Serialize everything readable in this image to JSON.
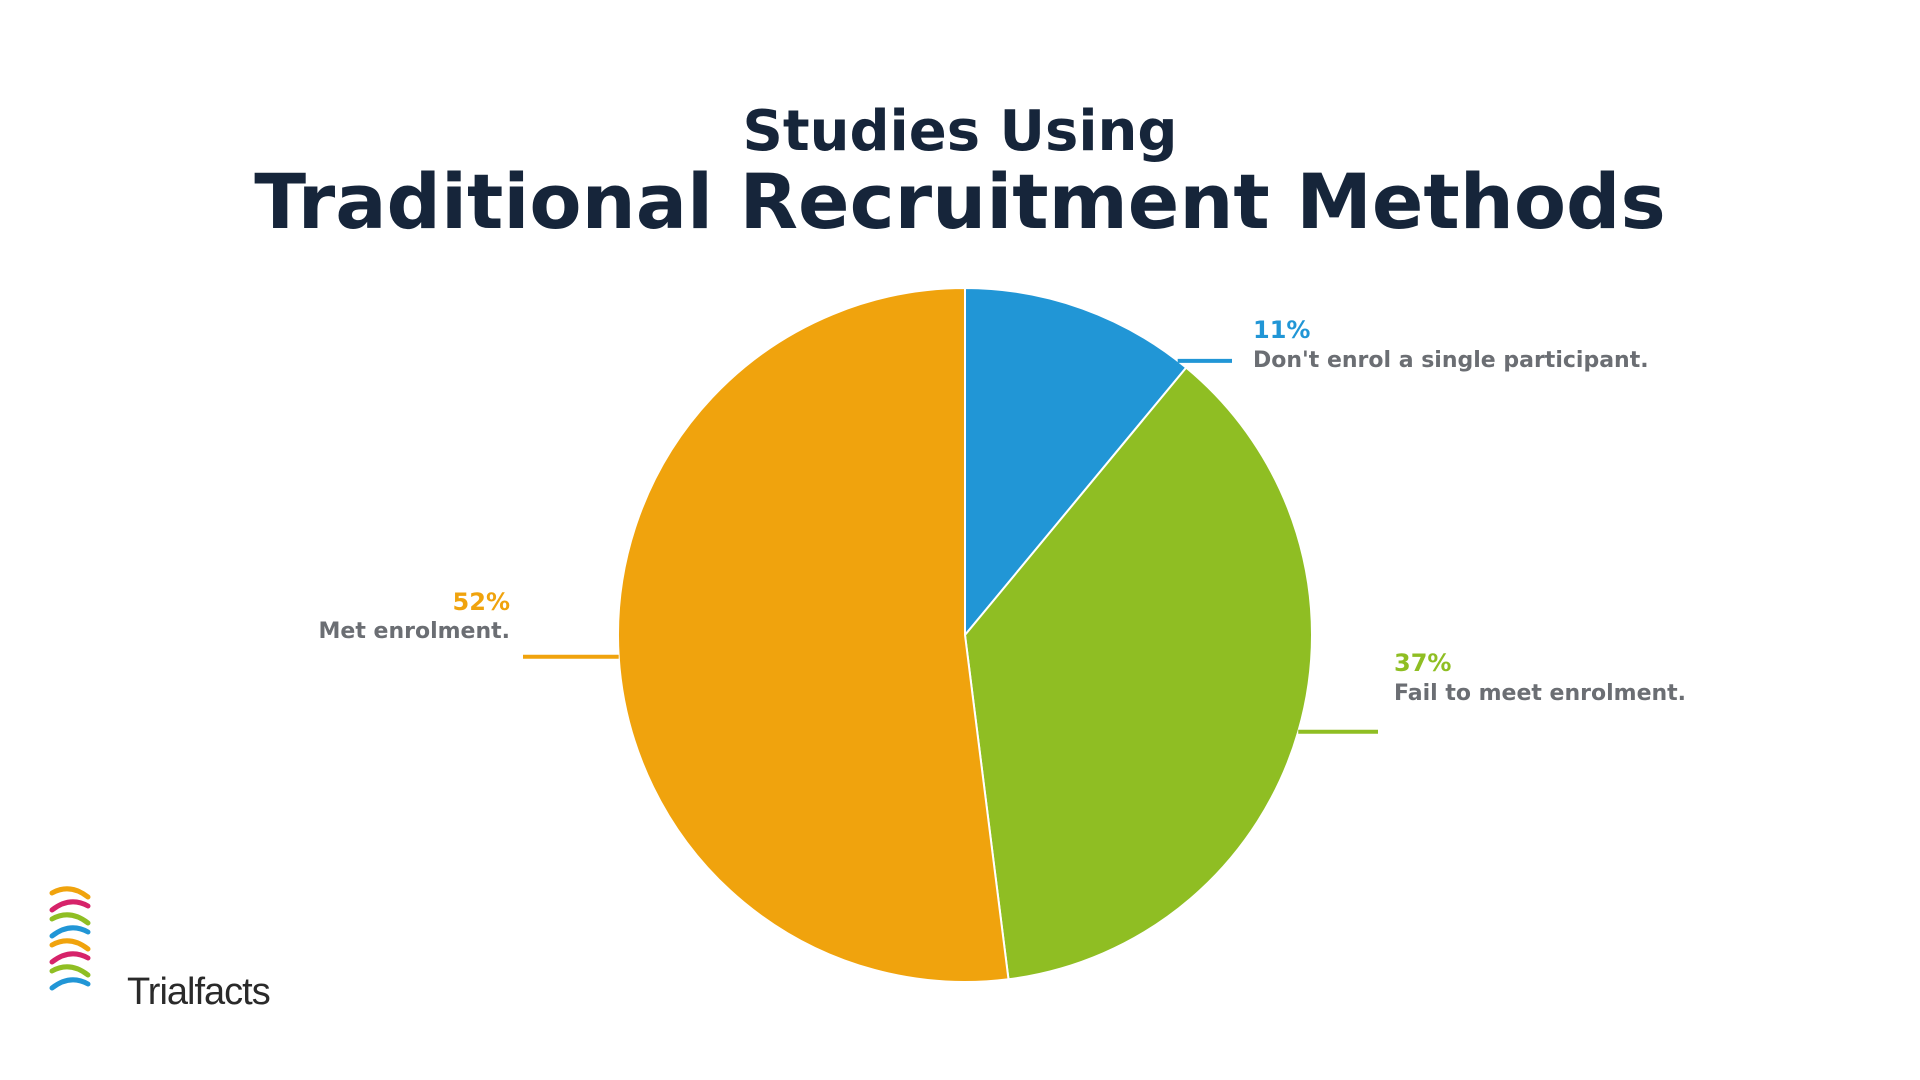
{
  "chart_data": {
    "type": "pie",
    "title_line1": "Studies Using",
    "title_line2": "Traditional Recruitment Methods",
    "start_angle_deg": 0,
    "direction": "clockwise",
    "slices": [
      {
        "label": "11%",
        "value": 11,
        "description": "Don't enrol a single participant.",
        "color": "#2196d6"
      },
      {
        "label": "37%",
        "value": 37,
        "description": "Fail to meet enrolment.",
        "color": "#8fbe23"
      },
      {
        "label": "52%",
        "value": 52,
        "description": "Met enrolment.",
        "color": "#f0a30d"
      }
    ]
  },
  "brand": {
    "name": "Trialfacts",
    "logo_icon": "dna-helix-icon",
    "logo_colors": [
      "#f0a30d",
      "#d6236a",
      "#8fbe23",
      "#2196d6"
    ]
  },
  "colors": {
    "title": "#16253a",
    "description_text": "#6b6e73",
    "background": "#ffffff"
  }
}
